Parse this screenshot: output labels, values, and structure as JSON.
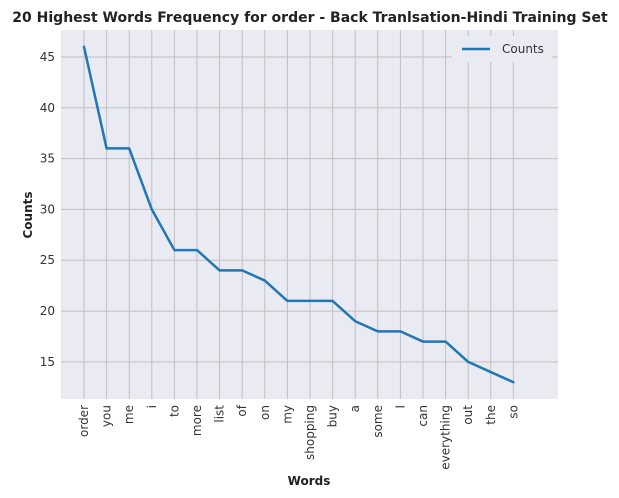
{
  "chart_data": {
    "type": "line",
    "title": "20 Highest Words Frequency for order - Back Tranlsation-Hindi Training Set",
    "xlabel": "Words",
    "ylabel": "Counts",
    "categories": [
      "order",
      "you",
      "me",
      "i",
      "to",
      "more",
      "list",
      "of",
      "on",
      "my",
      "shopping",
      "buy",
      "a",
      "some",
      "I",
      "can",
      "everything",
      "out",
      "the",
      "so"
    ],
    "series": [
      {
        "name": "Counts",
        "values": [
          46,
          36,
          36,
          30,
          26,
          26,
          24,
          24,
          23,
          21,
          21,
          21,
          19,
          18,
          18,
          17,
          17,
          15,
          14,
          13
        ],
        "color": "#1f77b4"
      }
    ],
    "yticks": [
      15,
      20,
      25,
      30,
      35,
      40,
      45
    ],
    "ylim": [
      11.35,
      47.65
    ],
    "grid": true,
    "legend_position": "top-right",
    "plot_background": "#eaeaf2",
    "grid_color": "#c0c0c0"
  }
}
